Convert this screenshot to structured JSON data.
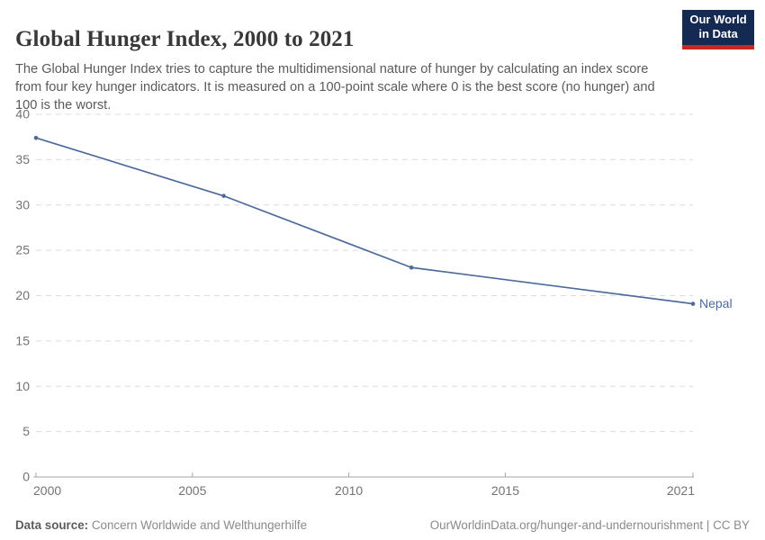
{
  "header": {
    "title": "Global Hunger Index, 2000 to 2021",
    "subtitle": "The Global Hunger Index tries to capture the multidimensional nature of hunger by calculating an index score from four key hunger indicators. It is measured on a 100-point scale where 0 is the best score (no hunger) and 100 is the worst.",
    "logo": {
      "line1": "Our World",
      "line2": "in Data"
    }
  },
  "colors": {
    "accent_line": "#4C6A9C",
    "logo_navy": "#152A52",
    "logo_red": "#C9271E",
    "grid": "#dcdcdc",
    "axis": "#a6a6a6",
    "tick_text": "#737373"
  },
  "chart_data": {
    "type": "line",
    "title": "Global Hunger Index, 2000 to 2021",
    "x": [
      2000,
      2006,
      2012,
      2021
    ],
    "series": [
      {
        "name": "Nepal",
        "color": "#4C6A9C",
        "values": [
          37.4,
          31.0,
          23.1,
          19.1
        ]
      }
    ],
    "xlabel": "",
    "ylabel": "",
    "xlim": [
      2000,
      2021
    ],
    "ylim": [
      0,
      40
    ],
    "x_ticks": [
      2000,
      2005,
      2010,
      2015,
      2021
    ],
    "y_ticks": [
      0,
      5,
      10,
      15,
      20,
      25,
      30,
      35,
      40
    ],
    "grid": "horizontal-dashed",
    "legend": "end-of-line-label"
  },
  "footer": {
    "data_source_label": "Data source:",
    "data_source_value": " Concern Worldwide and Welthungerhilfe",
    "attribution": "OurWorldinData.org/hunger-and-undernourishment | CC BY"
  }
}
